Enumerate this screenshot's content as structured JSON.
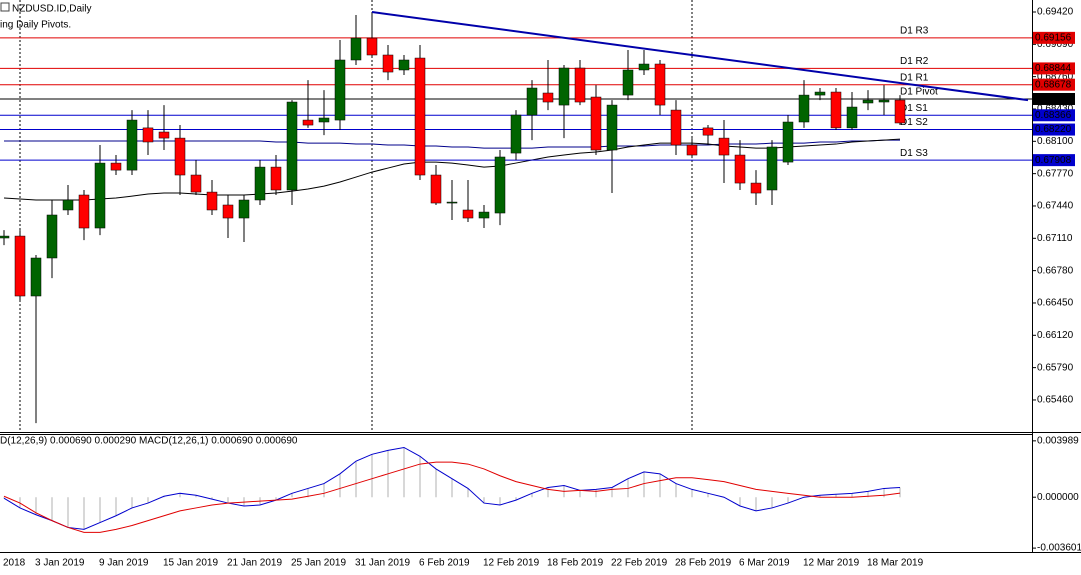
{
  "chart_data": [
    {
      "type": "candlestick",
      "title": "NZDUSD.ID,Daily",
      "subtitle": "ing Daily Pivots.",
      "up_color": "#006400",
      "down_color": "#ff0000",
      "categories": [
        "2018",
        null,
        "3 Jan 2019",
        null,
        null,
        null,
        "9 Jan 2019",
        null,
        null,
        null,
        "15 Jan 2019",
        null,
        null,
        null,
        "21 Jan 2019",
        null,
        null,
        null,
        "25 Jan 2019",
        null,
        null,
        null,
        "31 Jan 2019",
        null,
        null,
        null,
        "6 Feb 2019",
        null,
        null,
        null,
        "12 Feb 2019",
        null,
        null,
        null,
        "18 Feb 2019",
        null,
        null,
        null,
        "22 Feb 2019",
        null,
        null,
        null,
        "28 Feb 2019",
        null,
        null,
        null,
        "6 Mar 2019",
        null,
        null,
        null,
        "12 Mar 2019",
        null,
        null,
        null,
        "18 Mar 2019",
        null,
        null
      ],
      "open": [
        0.67113,
        0.67133,
        0.66521,
        0.66909,
        0.67399,
        0.67552,
        0.67215,
        0.67878,
        0.67806,
        0.68237,
        0.68195,
        0.68133,
        0.67756,
        0.67582,
        0.6745,
        0.67317,
        0.67501,
        0.67837,
        0.67603,
        0.68317,
        0.68297,
        0.68317,
        0.6893,
        0.69154,
        0.68981,
        0.68828,
        0.6895,
        0.67756,
        0.6747,
        0.67399,
        0.67317,
        0.67368,
        0.6798,
        0.68368,
        0.68593,
        0.6847,
        0.68848,
        0.68552,
        0.68011,
        0.68572,
        0.68828,
        0.68889,
        0.68419,
        0.68062,
        0.68237,
        0.68133,
        0.6796,
        0.67674,
        0.67603,
        0.67888,
        0.68297,
        0.68572,
        0.68603,
        0.68237,
        0.68491,
        0.68501,
        0.68521
      ],
      "high": [
        0.67194,
        0.67194,
        0.66939,
        0.67501,
        0.67654,
        0.67603,
        0.68062,
        0.6796,
        0.68419,
        0.68419,
        0.6847,
        0.68266,
        0.67909,
        0.67705,
        0.67552,
        0.67552,
        0.67909,
        0.6796,
        0.68521,
        0.68725,
        0.68623,
        0.69134,
        0.69389,
        0.6942,
        0.69083,
        0.68981,
        0.69083,
        0.67858,
        0.67705,
        0.67705,
        0.6745,
        0.68011,
        0.68419,
        0.68725,
        0.6893,
        0.68879,
        0.6893,
        0.68674,
        0.68521,
        0.69032,
        0.69032,
        0.6893,
        0.68521,
        0.68133,
        0.68266,
        0.68317,
        0.68112,
        0.67806,
        0.68112,
        0.68368,
        0.68725,
        0.68644,
        0.68644,
        0.68603,
        0.68623,
        0.68674,
        0.68572
      ],
      "low": [
        0.67041,
        0.6648,
        0.65224,
        0.66704,
        0.67348,
        0.67092,
        0.67143,
        0.67756,
        0.67756,
        0.6796,
        0.68011,
        0.67552,
        0.67552,
        0.67348,
        0.67113,
        0.67072,
        0.6745,
        0.67552,
        0.6745,
        0.68237,
        0.68163,
        0.68215,
        0.68879,
        0.6895,
        0.68725,
        0.68777,
        0.67705,
        0.6745,
        0.67297,
        0.67276,
        0.67215,
        0.67245,
        0.67909,
        0.68112,
        0.68419,
        0.68133,
        0.6847,
        0.6796,
        0.67572,
        0.68521,
        0.68777,
        0.68368,
        0.6796,
        0.67929,
        0.68062,
        0.67674,
        0.67603,
        0.6745,
        0.6745,
        0.67858,
        0.68237,
        0.68521,
        0.68215,
        0.68215,
        0.68419,
        0.68368,
        0.68266
      ],
      "close": [
        0.67133,
        0.66521,
        0.66909,
        0.67348,
        0.67501,
        0.67215,
        0.67878,
        0.67806,
        0.68317,
        0.68093,
        0.68133,
        0.67756,
        0.67582,
        0.67399,
        0.67317,
        0.67501,
        0.67837,
        0.67603,
        0.68501,
        0.68266,
        0.68338,
        0.6893,
        0.69154,
        0.68981,
        0.68807,
        0.6893,
        0.67756,
        0.6747,
        0.6748,
        0.67317,
        0.67378,
        0.6794,
        0.68368,
        0.68644,
        0.68501,
        0.68848,
        0.68501,
        0.68011,
        0.6847,
        0.68828,
        0.68889,
        0.6847,
        0.68062,
        0.6796,
        0.68163,
        0.6796,
        0.67674,
        0.67572,
        0.68042,
        0.68297,
        0.68572,
        0.68603,
        0.68237,
        0.6845,
        0.68521,
        0.68521,
        0.68287
      ],
      "moving_averages": [
        {
          "color": "#00008b",
          "values": [
            0.68103,
            0.68103,
            0.68103,
            0.68103,
            0.68103,
            0.68103,
            0.68103,
            0.68103,
            0.68103,
            0.68103,
            0.68103,
            0.68103,
            0.68103,
            0.68103,
            0.68103,
            0.68103,
            0.68103,
            0.68093,
            0.68093,
            0.68082,
            0.68082,
            0.68082,
            0.68072,
            0.68072,
            0.68062,
            0.68062,
            0.68052,
            0.68052,
            0.68042,
            0.68042,
            0.68031,
            0.68031,
            0.68031,
            0.68031,
            0.68042,
            0.68042,
            0.68042,
            0.68042,
            0.68052,
            0.68052,
            0.68052,
            0.68062,
            0.68062,
            0.68062,
            0.68062,
            0.68072,
            0.68072,
            0.68072,
            0.68082,
            0.68082,
            0.68082,
            0.68093,
            0.68093,
            0.68103,
            0.68103,
            0.68112,
            0.68112
          ]
        },
        {
          "color": "#000000",
          "values": [
            0.67521,
            0.67511,
            0.67501,
            0.67501,
            0.67501,
            0.67501,
            0.67511,
            0.67521,
            0.67541,
            0.67562,
            0.67572,
            0.67572,
            0.67562,
            0.67552,
            0.67552,
            0.67552,
            0.67562,
            0.67572,
            0.67592,
            0.67613,
            0.67643,
            0.67685,
            0.67735,
            0.67786,
            0.67827,
            0.67868,
            0.67888,
            0.67888,
            0.67878,
            0.67858,
            0.67837,
            0.67848,
            0.67878,
            0.67909,
            0.6794,
            0.6796,
            0.6798,
            0.67991,
            0.68011,
            0.68042,
            0.68062,
            0.68082,
            0.68082,
            0.68082,
            0.68072,
            0.68052,
            0.68042,
            0.68031,
            0.68031,
            0.68042,
            0.68052,
            0.68062,
            0.68072,
            0.68093,
            0.68103,
            0.68112,
            0.68123
          ]
        }
      ],
      "pivots": {
        "names": [
          "D1 R3",
          "D1 R2",
          "D1 R1",
          "D1 Pivot",
          "D1 S1",
          "D1 S2",
          "D1 S3"
        ],
        "values": [
          0.69156,
          0.68844,
          0.68678,
          0.68532,
          0.68366,
          0.6822,
          0.67908
        ],
        "value_labels": [
          "0.69156",
          "0.68844",
          "0.68678",
          "0.68532",
          "0.68366",
          "0.68220",
          "0.67908"
        ],
        "colors": [
          "#e00000",
          "#e00000",
          "#e00000",
          "#000000",
          "#0000cd",
          "#0000cd",
          "#0000cd"
        ]
      },
      "trendline": {
        "color": "#0000aa",
        "x": [
          23,
          64
        ],
        "y": [
          0.6942,
          0.6852
        ]
      },
      "ylim": [
        0.65133,
        0.69522
      ],
      "yticks": [
        {
          "value": 0.6942,
          "label": "0.69420"
        },
        {
          "value": 0.6909,
          "label": "0.69090"
        },
        {
          "value": 0.6876,
          "label": "0.68760"
        },
        {
          "value": 0.6843,
          "label": "0.68430"
        },
        {
          "value": 0.681,
          "label": "0.68100"
        },
        {
          "value": 0.6777,
          "label": "0.67770"
        },
        {
          "value": 0.6744,
          "label": "0.67440"
        },
        {
          "value": 0.6711,
          "label": "0.67110"
        },
        {
          "value": 0.6678,
          "label": "0.66780"
        },
        {
          "value": 0.6645,
          "label": "0.66450"
        },
        {
          "value": 0.6612,
          "label": "0.66120"
        },
        {
          "value": 0.6579,
          "label": "0.65790"
        },
        {
          "value": 0.6546,
          "label": "0.65460"
        }
      ]
    },
    {
      "type": "macd",
      "title": "D(12,26,9) 0.000690 0.000290 MACD(12,26,1) 0.000690 0.000690",
      "histogram_color": "#b0b0b0",
      "series": [
        {
          "color": "#0000cd",
          "values": [
            -6.9e-05,
            -0.000759,
            -0.001242,
            -0.001656,
            -0.002139,
            -0.002277,
            -0.001794,
            -0.001311,
            -0.000759,
            -0.000414,
            6.9e-05,
            0.000276,
            0.000138,
            -0.000138,
            -0.000414,
            -0.000621,
            -0.000552,
            -0.000207,
            0.000276,
            0.000621,
            0.000966,
            0.001656,
            0.002553,
            0.003036,
            0.003312,
            0.003519,
            0.002898,
            0.002001,
            0.001311,
            0.000621,
            -0.000414,
            -0.000552,
            -0.000207,
            0.000276,
            0.00069,
            0.000828,
            0.000483,
            0.000552,
            0.00069,
            0.001311,
            0.001794,
            0.001656,
            0.000966,
            0.000552,
            0.000276,
            0,
            -0.000621,
            -0.000966,
            -0.000759,
            -0.000414,
            0,
            0.000138,
            0.000207,
            0.000276,
            0.000414,
            0.000621,
            0.00069
          ]
        },
        {
          "color": "#e00000",
          "values": [
            6.9e-05,
            -0.000414,
            -0.001104,
            -0.001656,
            -0.002139,
            -0.002484,
            -0.002484,
            -0.002277,
            -0.002001,
            -0.001656,
            -0.001311,
            -0.000966,
            -0.000759,
            -0.000552,
            -0.000414,
            -0.000345,
            -0.000276,
            -0.000207,
            -0.000138,
            6.9e-05,
            0.000276,
            0.000621,
            0.000966,
            0.001311,
            0.001656,
            0.002001,
            0.002346,
            0.002484,
            0.002484,
            0.002346,
            0.002001,
            0.001518,
            0.001104,
            0.000828,
            0.000552,
            0.000414,
            0.000483,
            0.000414,
            0.000552,
            0.000621,
            0.000966,
            0.001173,
            0.00138,
            0.00138,
            0.001242,
            0.001104,
            0.000828,
            0.000552,
            0.000414,
            0.000276,
            0.000138,
            0,
            0,
            0,
            6.9e-05,
            0.000138,
            0.00029
          ]
        }
      ],
      "ylim": [
        -0.003877,
        0.004403
      ],
      "yticks": [
        0.003989,
        {
          "value": 0,
          "label": "0.000000"
        },
        -0.003601
      ]
    }
  ]
}
